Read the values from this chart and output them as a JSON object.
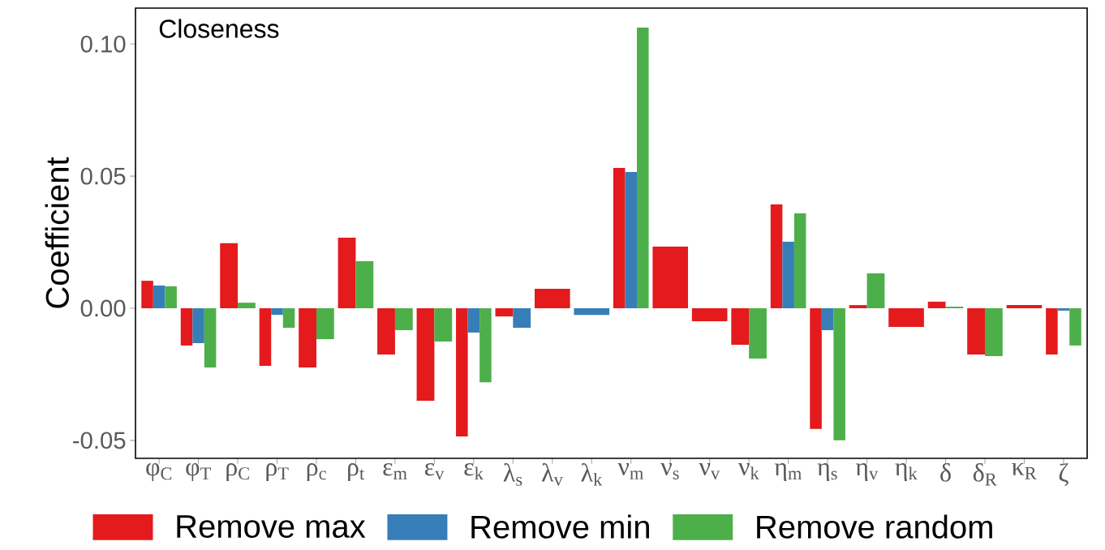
{
  "chart_data": {
    "type": "bar",
    "title": "Closeness",
    "ylabel": "Coefficient",
    "categories": [
      "φ$_{C}$",
      "φ$_{T}$",
      "ρ$_{C}$",
      "ρ$_{T}$",
      "ρ$_{c}$",
      "ρ$_{t}$",
      "ε$_{m}$",
      "ε$_{v}$",
      "ε$_{k}$",
      "λ$_{s}$",
      "λ$_{v}$",
      "λ$_{k}$",
      "ν$_{m}$",
      "ν$_{s}$",
      "ν$_{v}$",
      "ν$_{k}$",
      "η$_{m}$",
      "η$_{s}$",
      "η$_{v}$",
      "η$_{k}$",
      "δ",
      "δ$_{R}$",
      "κ$_{R}$",
      "ζ"
    ],
    "series": [
      {
        "name": "Remove max",
        "color": "#e41a1c",
        "values": [
          0.0104,
          -0.0141,
          0.0246,
          -0.0218,
          -0.0224,
          0.0267,
          -0.0175,
          -0.035,
          -0.0485,
          -0.0031,
          0.0074,
          null,
          0.0531,
          0.0233,
          -0.0049,
          -0.0138,
          0.0393,
          -0.0457,
          0.0012,
          -0.0071,
          0.0025,
          -0.0175,
          0.0012,
          -0.0175
        ]
      },
      {
        "name": "Remove min",
        "color": "#377eb8",
        "values": [
          0.0086,
          -0.0132,
          null,
          -0.0025,
          null,
          null,
          null,
          null,
          -0.0092,
          -0.0074,
          null,
          -0.0025,
          0.0516,
          null,
          null,
          null,
          0.0252,
          -0.0083,
          null,
          null,
          null,
          null,
          null,
          -0.0009
        ]
      },
      {
        "name": "Remove random",
        "color": "#4daf4a",
        "values": [
          0.0083,
          -0.0224,
          0.0021,
          -0.0074,
          -0.0117,
          0.0178,
          -0.0083,
          -0.0126,
          -0.028,
          null,
          null,
          null,
          0.1062,
          null,
          null,
          -0.019,
          0.0359,
          -0.05,
          0.0132,
          null,
          0.0006,
          -0.0181,
          null,
          -0.0141
        ]
      }
    ],
    "ylim": [
      -0.0568,
      0.1136
    ],
    "yticks": [
      {
        "value": -0.05,
        "label": "-0.05"
      },
      {
        "value": 0,
        "label": "0.00"
      },
      {
        "value": 0.05,
        "label": "0.05"
      },
      {
        "value": 0.1,
        "label": "0.10"
      }
    ],
    "grid": false,
    "legend": "bottom"
  }
}
